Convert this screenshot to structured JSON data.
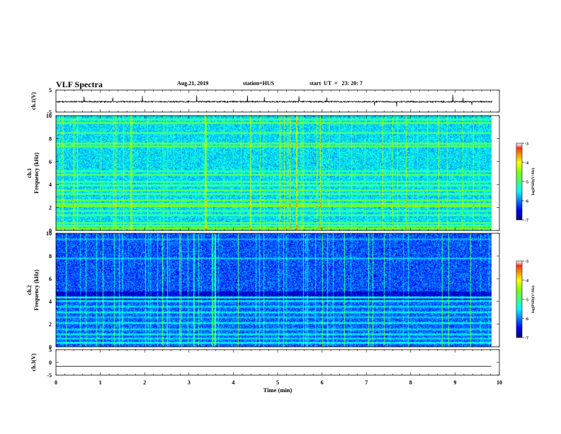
{
  "header": {
    "title": "VLF Spectra",
    "date": "Aug.21, 2019",
    "station": "station=HUS",
    "start": "start  UT  =   23: 20: 7"
  },
  "colors": {
    "background": "#ffffff",
    "axis": "#000000",
    "colormap": [
      "#000080",
      "#0000ff",
      "#0080ff",
      "#00ffff",
      "#40ff80",
      "#80ff00",
      "#ffff00",
      "#ff8000",
      "#ff0000",
      "#ffffff"
    ]
  },
  "chart_data": [
    {
      "type": "line",
      "panel": "ch1-waveform",
      "ylabel": "ch.1(V)",
      "ylim": [
        -5,
        5
      ],
      "yticks": [
        "5",
        "-5"
      ],
      "xlim": [
        0,
        10
      ],
      "baseline_v": -0.3,
      "noise_amplitude_v": 0.6,
      "spikes": [
        {
          "t": 0.63,
          "v": 2.0
        },
        {
          "t": 1.28,
          "v": 1.6
        },
        {
          "t": 1.95,
          "v": 2.4
        },
        {
          "t": 3.17,
          "v": 2.6
        },
        {
          "t": 4.32,
          "v": 2.5
        },
        {
          "t": 4.7,
          "v": 1.8
        },
        {
          "t": 5.48,
          "v": 2.2
        },
        {
          "t": 6.11,
          "v": 1.7
        },
        {
          "t": 7.18,
          "v": -2.0
        },
        {
          "t": 7.68,
          "v": -2.5
        },
        {
          "t": 8.95,
          "v": 2.9
        },
        {
          "t": 9.18,
          "v": 1.5
        },
        {
          "t": 9.38,
          "v": -1.8
        }
      ]
    },
    {
      "type": "heatmap",
      "panel": "ch1-spectrogram",
      "ylabel": "ch.1\nFrequency (kHz)",
      "ylim": [
        0,
        10
      ],
      "yticks": [
        "0",
        "2",
        "4",
        "6",
        "8",
        "10"
      ],
      "xlim": [
        0,
        10
      ],
      "duration_min": 9.82,
      "background_level": -5.6,
      "colorbar": {
        "label": "log(PSD)(V²/Hz)",
        "range": [
          -7,
          -3
        ],
        "ticks": [
          "-3",
          "-4",
          "-5",
          "-6",
          "-7"
        ]
      },
      "bands": [
        {
          "f": 0.15,
          "level": -4.5
        },
        {
          "f": 0.4,
          "level": -4.6
        },
        {
          "f": 0.6,
          "level": -4.8
        },
        {
          "f": 1.3,
          "level": -4.9
        },
        {
          "f": 1.7,
          "level": -5.0
        },
        {
          "f": 2.1,
          "level": -4.4
        },
        {
          "f": 2.3,
          "level": -4.6
        },
        {
          "f": 2.6,
          "level": -4.7
        },
        {
          "f": 3.15,
          "level": -4.9
        },
        {
          "f": 3.5,
          "level": -4.8
        },
        {
          "f": 3.9,
          "level": -4.9
        },
        {
          "f": 4.2,
          "level": -5.0
        },
        {
          "f": 4.85,
          "level": -4.8
        },
        {
          "f": 5.15,
          "level": -5.0
        },
        {
          "f": 7.3,
          "level": -4.8
        },
        {
          "f": 7.6,
          "level": -4.6
        },
        {
          "f": 8.5,
          "level": -4.9
        },
        {
          "f": 9.4,
          "level": -4.7
        },
        {
          "f": 9.7,
          "level": -4.9
        }
      ]
    },
    {
      "type": "heatmap",
      "panel": "ch2-spectrogram",
      "ylabel": "ch.2\nFrequency (kHz)",
      "ylim": [
        0,
        10
      ],
      "yticks": [
        "0",
        "2",
        "4",
        "6",
        "8",
        "10"
      ],
      "xlim": [
        0,
        10
      ],
      "duration_min": 9.82,
      "background_level": -6.1,
      "low_band_cutoff_khz": 4.5,
      "colorbar": {
        "label": "log(PSD)(V²/Hz)",
        "range": [
          -7,
          -3
        ],
        "ticks": [
          "-3",
          "-4",
          "-5",
          "-6",
          "-7"
        ]
      },
      "bands": [
        {
          "f": 0.3,
          "level": -5.4
        },
        {
          "f": 0.7,
          "level": -5.6
        },
        {
          "f": 1.05,
          "level": -5.5
        },
        {
          "f": 1.5,
          "level": -5.6
        },
        {
          "f": 2.1,
          "level": -5.5
        },
        {
          "f": 2.6,
          "level": -5.7
        },
        {
          "f": 3.05,
          "level": -5.5
        },
        {
          "f": 3.5,
          "level": -5.6
        },
        {
          "f": 4.05,
          "level": -5.5
        },
        {
          "f": 4.35,
          "level": -5.4
        },
        {
          "f": 7.8,
          "level": -5.7
        },
        {
          "f": 9.5,
          "level": -5.8
        }
      ]
    },
    {
      "type": "line",
      "panel": "ch3-waveform",
      "ylabel": "ch.3(V)",
      "ylim": [
        -5,
        5
      ],
      "yticks": [
        "5",
        "0",
        "-5"
      ],
      "xlim": [
        0,
        10
      ],
      "level_v": -1.5
    }
  ],
  "xaxis": {
    "label": "Time  (min)",
    "ticks": [
      "0",
      "1",
      "2",
      "3",
      "4",
      "5",
      "6",
      "7",
      "8",
      "9",
      "10"
    ]
  }
}
